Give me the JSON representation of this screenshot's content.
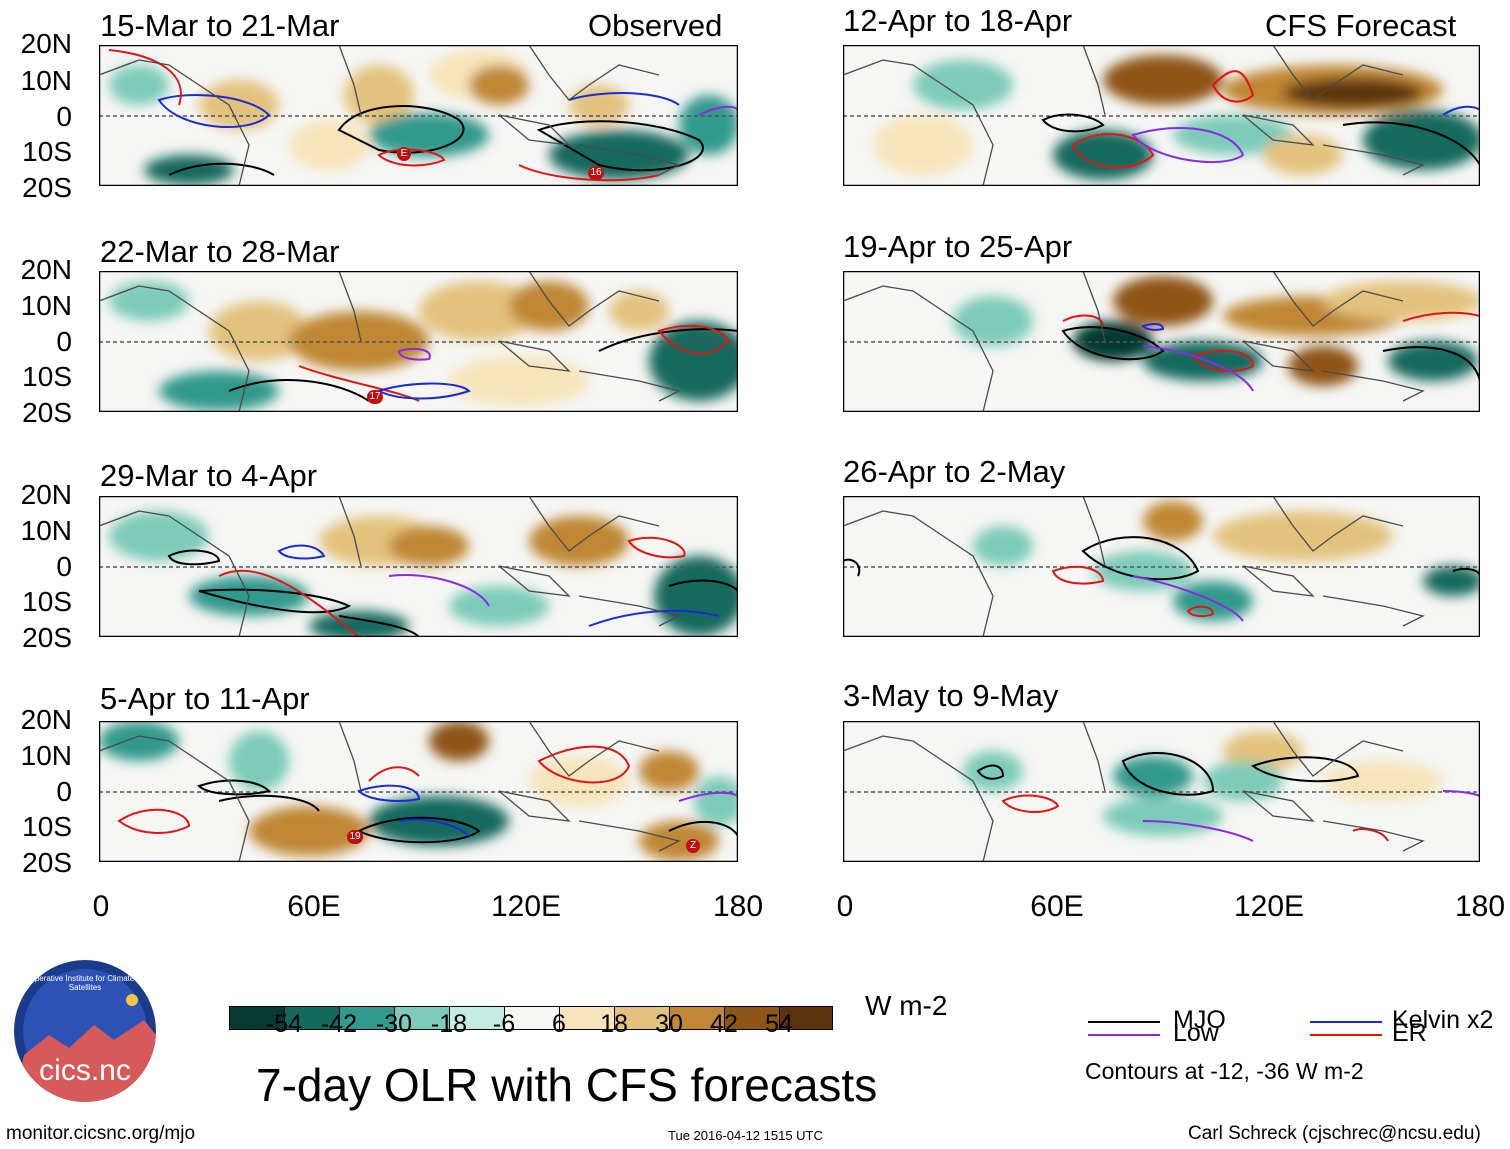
{
  "header": {
    "observed_label": "Observed",
    "forecast_label": "CFS Forecast"
  },
  "panels": {
    "p1": {
      "title": "15-Mar to 21-Mar"
    },
    "p2": {
      "title": "22-Mar to 28-Mar"
    },
    "p3": {
      "title": "29-Mar to 4-Apr"
    },
    "p4": {
      "title": "5-Apr to 11-Apr"
    },
    "p5": {
      "title": "12-Apr to 18-Apr"
    },
    "p6": {
      "title": "19-Apr to 25-Apr"
    },
    "p7": {
      "title": "26-Apr to 2-May"
    },
    "p8": {
      "title": "3-May to 9-May"
    }
  },
  "axes": {
    "lat_labels": [
      "20N",
      "10N",
      "0",
      "10S",
      "20S"
    ],
    "lon_labels": [
      "0",
      "60E",
      "120E",
      "180"
    ]
  },
  "storm_labels": {
    "p1_a": "E",
    "p1_b": "16",
    "p2_a": "17",
    "p4_a": "19",
    "p4_b": "Z"
  },
  "colorbar": {
    "unit": "W m-2",
    "ticks": [
      "-54",
      "-42",
      "-30",
      "-18",
      "-6",
      "6",
      "18",
      "30",
      "42",
      "54"
    ],
    "colors": [
      "#053b31",
      "#12695d",
      "#32998d",
      "#7dcbb9",
      "#c6ebe3",
      "#f6f6f4",
      "#f7e4ba",
      "#e3c27e",
      "#c08736",
      "#8f5516",
      "#5c340c"
    ]
  },
  "legend": {
    "mjo": "MJO",
    "kelvin": "Kelvin x2",
    "low": "Low",
    "er": "ER",
    "contours": "Contours at -12, -36 W m-2",
    "colors": {
      "mjo": "#000000",
      "kelvin": "#1a2ad6",
      "low": "#8a2be2",
      "er": "#e01616"
    }
  },
  "footer": {
    "title": "7-day OLR with CFS forecasts",
    "url": "monitor.cicsnc.org/mjo",
    "timestamp": "Tue 2016-04-12 1515 UTC",
    "credit": "Carl Schreck (cjschrec@ncsu.edu)",
    "logo_text": "cics.nc",
    "logo_ring": "Cooperative Institute for Climate and Satellites"
  }
}
